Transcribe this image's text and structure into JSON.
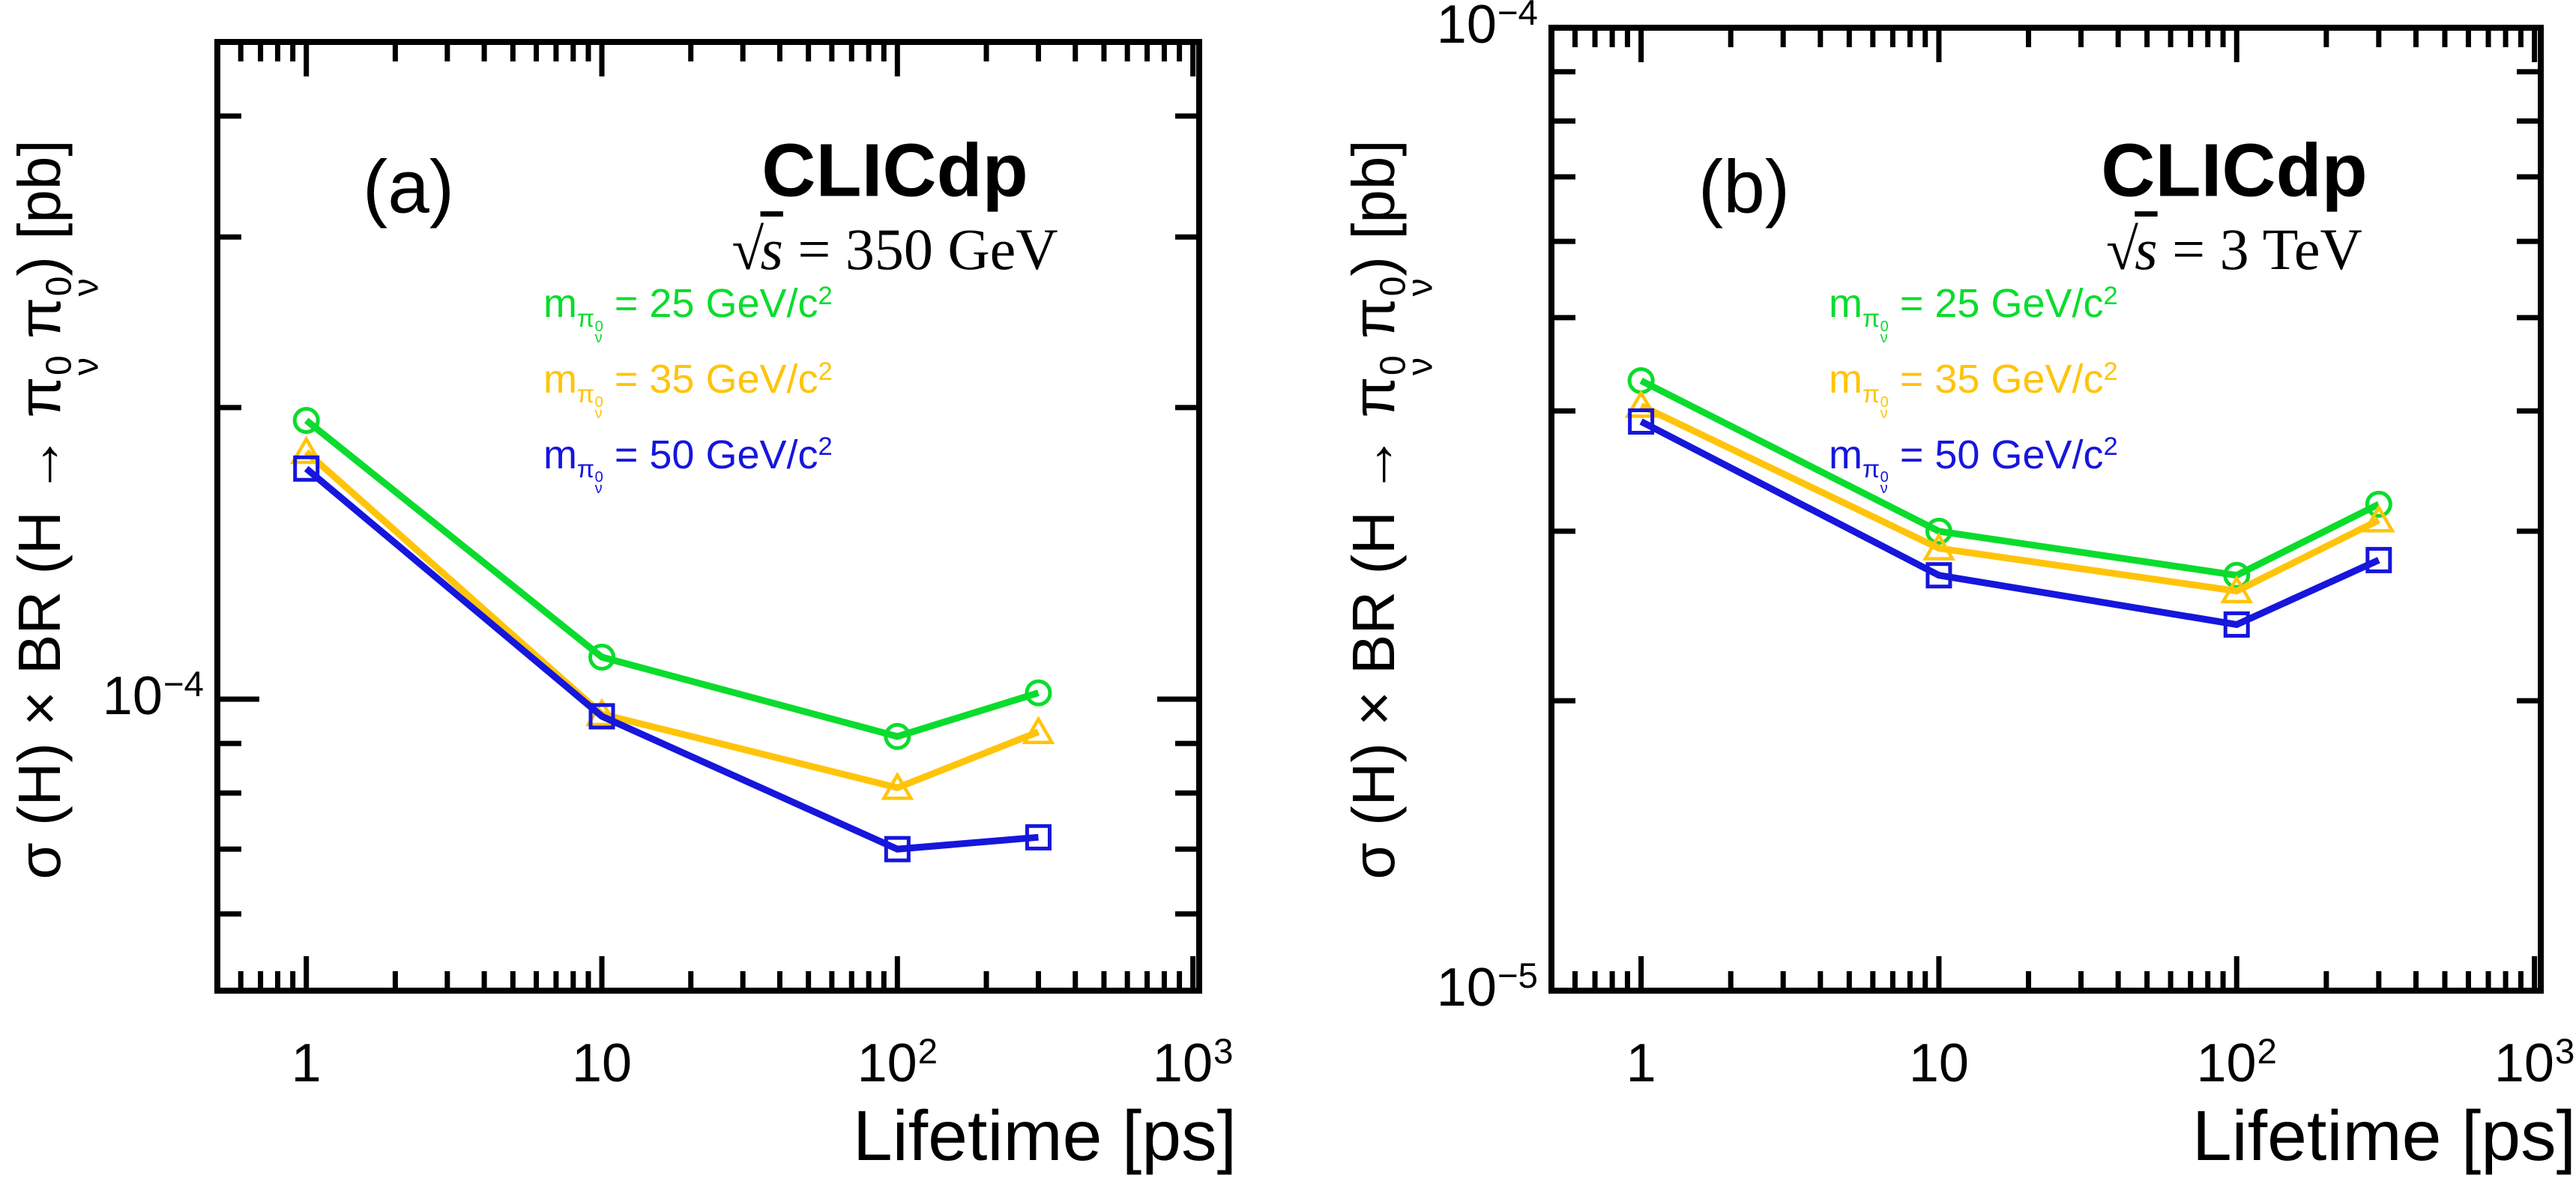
{
  "page": {
    "background": "#ffffff"
  },
  "colors": {
    "green": "#0ADC2D",
    "yellow": "#FFC40A",
    "blue": "#1616DC",
    "frame": "#000000"
  },
  "ylabel": {
    "prefix": "σ (H) × BR (H → ",
    "pi": "π",
    "pi_sup": "0",
    "pi_sub": "ν",
    "sep": " ",
    "suffix": ") [pb]"
  },
  "legend_template": {
    "prefix": "m",
    "pi": "π",
    "pi_sup": "0",
    "pi_sub": "ν",
    "equals": " = ",
    "units": " GeV/c",
    "units_sup": "2"
  },
  "chart_data": [
    {
      "type": "line",
      "panel_label": "(a)",
      "title": "CLICdp",
      "subtitle": {
        "sqrt": "√",
        "arg": "s",
        "rest": " = 350 GeV"
      },
      "xlabel": "Lifetime [ps]",
      "xscale": "log",
      "yscale": "log",
      "x": [
        1,
        10,
        100,
        300
      ],
      "xlim": [
        0.5,
        1050
      ],
      "ylim": [
        5e-05,
        0.000477
      ],
      "grid": false,
      "legend_position": "upper-right-inside",
      "xticks": [
        {
          "v": 1,
          "base": "1",
          "exp": ""
        },
        {
          "v": 10,
          "base": "10",
          "exp": ""
        },
        {
          "v": 100,
          "base": "10",
          "exp": "2"
        },
        {
          "v": 1000,
          "base": "10",
          "exp": "3"
        }
      ],
      "yticks": [
        {
          "v": 0.0001,
          "base": "10",
          "exp": "−4"
        }
      ],
      "series": [
        {
          "name": "m(π0ν) = 25 GeV/c2",
          "mass": "25",
          "marker": "circle",
          "color_key": "green",
          "values": [
            0.000194,
            0.0001105,
            9.15e-05,
            0.0001015
          ]
        },
        {
          "name": "m(π0ν) = 35 GeV/c2",
          "mass": "35",
          "marker": "triangle",
          "color_key": "yellow",
          "values": [
            0.00018,
            9.65e-05,
            8.1e-05,
            9.25e-05
          ]
        },
        {
          "name": "m(π0ν) = 50 GeV/c2",
          "mass": "50",
          "marker": "square",
          "color_key": "blue",
          "values": [
            0.000173,
            9.6e-05,
            7e-05,
            7.2e-05
          ]
        }
      ]
    },
    {
      "type": "line",
      "panel_label": "(b)",
      "title": "CLICdp",
      "subtitle": {
        "sqrt": "√",
        "arg": "s",
        "rest": " = 3 TeV"
      },
      "xlabel": "Lifetime [ps]",
      "xscale": "log",
      "yscale": "log",
      "x": [
        1,
        10,
        100,
        300
      ],
      "xlim": [
        0.5,
        1050
      ],
      "ylim": [
        1e-05,
        0.0001
      ],
      "grid": false,
      "legend_position": "upper-right-inside",
      "xticks": [
        {
          "v": 1,
          "base": "1",
          "exp": ""
        },
        {
          "v": 10,
          "base": "10",
          "exp": ""
        },
        {
          "v": 100,
          "base": "10",
          "exp": "2"
        },
        {
          "v": 1000,
          "base": "10",
          "exp": "3"
        }
      ],
      "yticks": [
        {
          "v": 0.0001,
          "base": "10",
          "exp": "−4"
        },
        {
          "v": 1e-05,
          "base": "10",
          "exp": "−5"
        }
      ],
      "series": [
        {
          "name": "m(π0ν) = 25 GeV/c2",
          "mass": "25",
          "marker": "circle",
          "color_key": "green",
          "values": [
            4.3e-05,
            3e-05,
            2.7e-05,
            3.2e-05
          ]
        },
        {
          "name": "m(π0ν) = 35 GeV/c2",
          "mass": "35",
          "marker": "triangle",
          "color_key": "yellow",
          "values": [
            4.05e-05,
            2.88e-05,
            2.6e-05,
            3.08e-05
          ]
        },
        {
          "name": "m(π0ν) = 50 GeV/c2",
          "mass": "50",
          "marker": "square",
          "color_key": "blue",
          "values": [
            3.9e-05,
            2.7e-05,
            2.4e-05,
            2.8e-05
          ]
        }
      ]
    }
  ]
}
